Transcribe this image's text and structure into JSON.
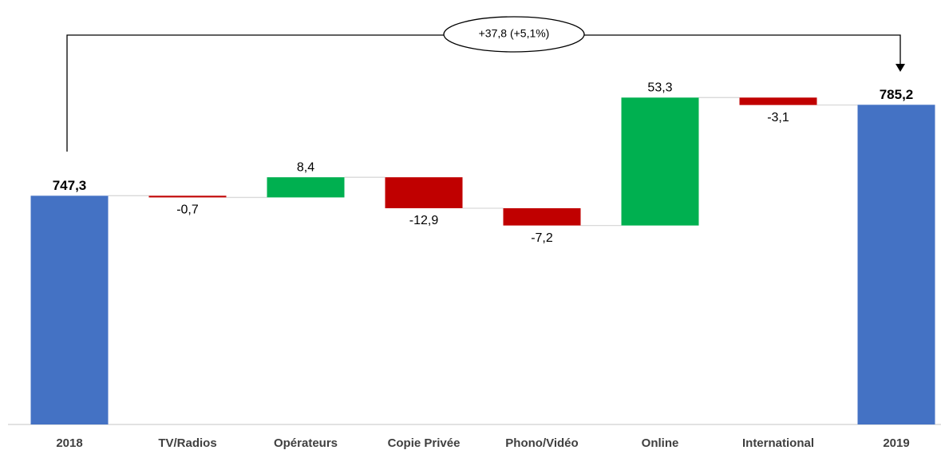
{
  "chart_data": {
    "type": "waterfall",
    "annotation": "+37,8 (+5,1%)",
    "categories": [
      "2018",
      "TV/Radios",
      "Opérateurs",
      "Copie Privée",
      "Phono/Vidéo",
      "Online",
      "International",
      "2019"
    ],
    "values": [
      747.3,
      -0.7,
      8.4,
      -12.9,
      -7.2,
      53.3,
      -3.1,
      785.2
    ],
    "value_labels": [
      "747,3",
      "-0,7",
      "8,4",
      "-12,9",
      "-7,2",
      "53,3",
      "-3,1",
      "785,2"
    ],
    "totals": [
      true,
      false,
      false,
      false,
      false,
      false,
      false,
      true
    ],
    "colors": {
      "total": "#4472c4",
      "increase": "#00b050",
      "decrease": "#c00000"
    },
    "ylim": [
      652,
      800
    ]
  }
}
